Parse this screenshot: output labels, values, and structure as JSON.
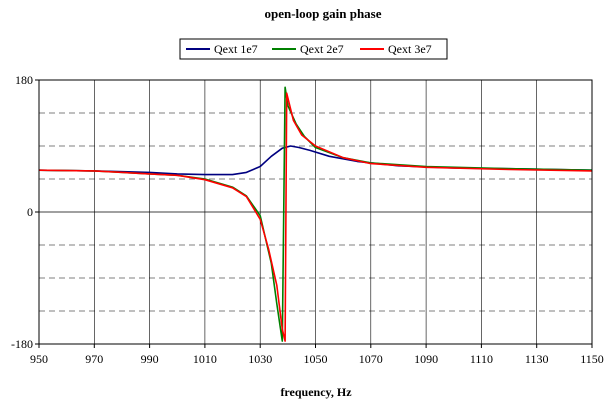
{
  "chart_data": {
    "type": "line",
    "title": "open-loop gain phase",
    "xlabel": "frequency, Hz",
    "ylabel": "",
    "xlim": [
      950,
      1150
    ],
    "ylim": [
      -180,
      180
    ],
    "x_ticks": [
      950,
      970,
      990,
      1010,
      1030,
      1050,
      1070,
      1090,
      1110,
      1130,
      1150
    ],
    "y_tick_labels": [
      180,
      0,
      -180
    ],
    "y_dashed_gridlines": [
      135,
      90,
      45,
      -45,
      -90,
      -135
    ],
    "grid": true,
    "legend_position": "top",
    "series": [
      {
        "name": "Qext 1e7",
        "color": "#000080",
        "points": [
          [
            950,
            57
          ],
          [
            970,
            56
          ],
          [
            990,
            54
          ],
          [
            1000,
            52
          ],
          [
            1010,
            51
          ],
          [
            1020,
            51
          ],
          [
            1025,
            54
          ],
          [
            1030,
            62
          ],
          [
            1034,
            76
          ],
          [
            1038,
            87
          ],
          [
            1041,
            90
          ],
          [
            1044,
            88
          ],
          [
            1048,
            84
          ],
          [
            1055,
            76
          ],
          [
            1065,
            69
          ],
          [
            1080,
            63
          ],
          [
            1100,
            60
          ],
          [
            1120,
            59
          ],
          [
            1150,
            57
          ]
        ]
      },
      {
        "name": "Qext 2e7",
        "color": "#008000",
        "points": [
          [
            950,
            57
          ],
          [
            970,
            56
          ],
          [
            990,
            52
          ],
          [
            1000,
            50
          ],
          [
            1010,
            45
          ],
          [
            1020,
            34
          ],
          [
            1025,
            22
          ],
          [
            1030,
            -5
          ],
          [
            1034,
            -70
          ],
          [
            1036,
            -125
          ],
          [
            1038,
            -176
          ],
          [
            1039,
            170
          ],
          [
            1040,
            145
          ],
          [
            1043,
            120
          ],
          [
            1046,
            103
          ],
          [
            1050,
            88
          ],
          [
            1060,
            74
          ],
          [
            1070,
            67
          ],
          [
            1090,
            62
          ],
          [
            1120,
            59
          ],
          [
            1150,
            57
          ]
        ]
      },
      {
        "name": "Qext 3e7",
        "color": "#ff0000",
        "points": [
          [
            950,
            57
          ],
          [
            970,
            56
          ],
          [
            990,
            52
          ],
          [
            1000,
            50
          ],
          [
            1010,
            44
          ],
          [
            1020,
            33
          ],
          [
            1025,
            21
          ],
          [
            1030,
            -10
          ],
          [
            1033,
            -50
          ],
          [
            1036,
            -100
          ],
          [
            1038,
            -160
          ],
          [
            1039,
            -176
          ],
          [
            1039.6,
            162
          ],
          [
            1042,
            125
          ],
          [
            1045,
            105
          ],
          [
            1050,
            90
          ],
          [
            1060,
            74
          ],
          [
            1070,
            66
          ],
          [
            1090,
            61
          ],
          [
            1120,
            58
          ],
          [
            1150,
            56
          ]
        ]
      }
    ]
  }
}
